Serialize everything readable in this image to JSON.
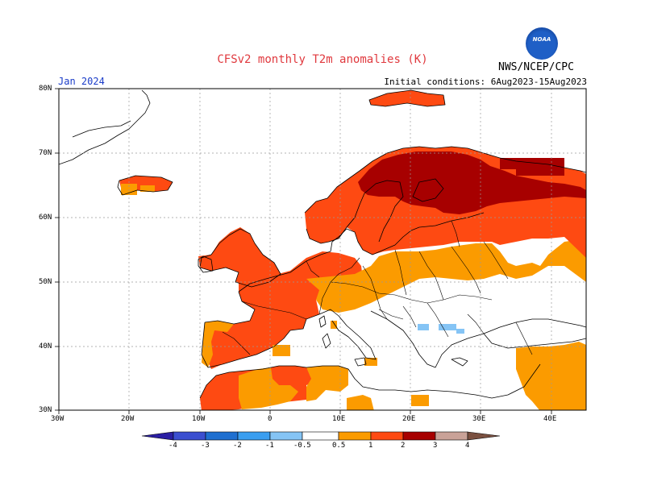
{
  "title": "CFSv2 monthly T2m anomalies (K)",
  "month_label": "Jan 2024",
  "initial_conditions": "Initial conditions: 6Aug2023-15Aug2023",
  "agency": "NWS/NCEP/CPC",
  "logo_text": "NOAA",
  "lat_labels": [
    "80N",
    "70N",
    "60N",
    "50N",
    "40N",
    "30N"
  ],
  "lon_labels": [
    "30W",
    "20W",
    "10W",
    "0",
    "10E",
    "20E",
    "30E",
    "40E"
  ],
  "colorbar": {
    "labels": [
      "-4",
      "-3",
      "-2",
      "-1",
      "-0.5",
      "0.5",
      "1",
      "2",
      "3",
      "4"
    ],
    "colors": [
      "#2b1fa3",
      "#3b4fd0",
      "#1f6fd0",
      "#3a9ef0",
      "#85c4f5",
      "#ffffff",
      "#fb9b00",
      "#fe4a12",
      "#a70000",
      "#c9a298",
      "#7a5040"
    ]
  }
}
